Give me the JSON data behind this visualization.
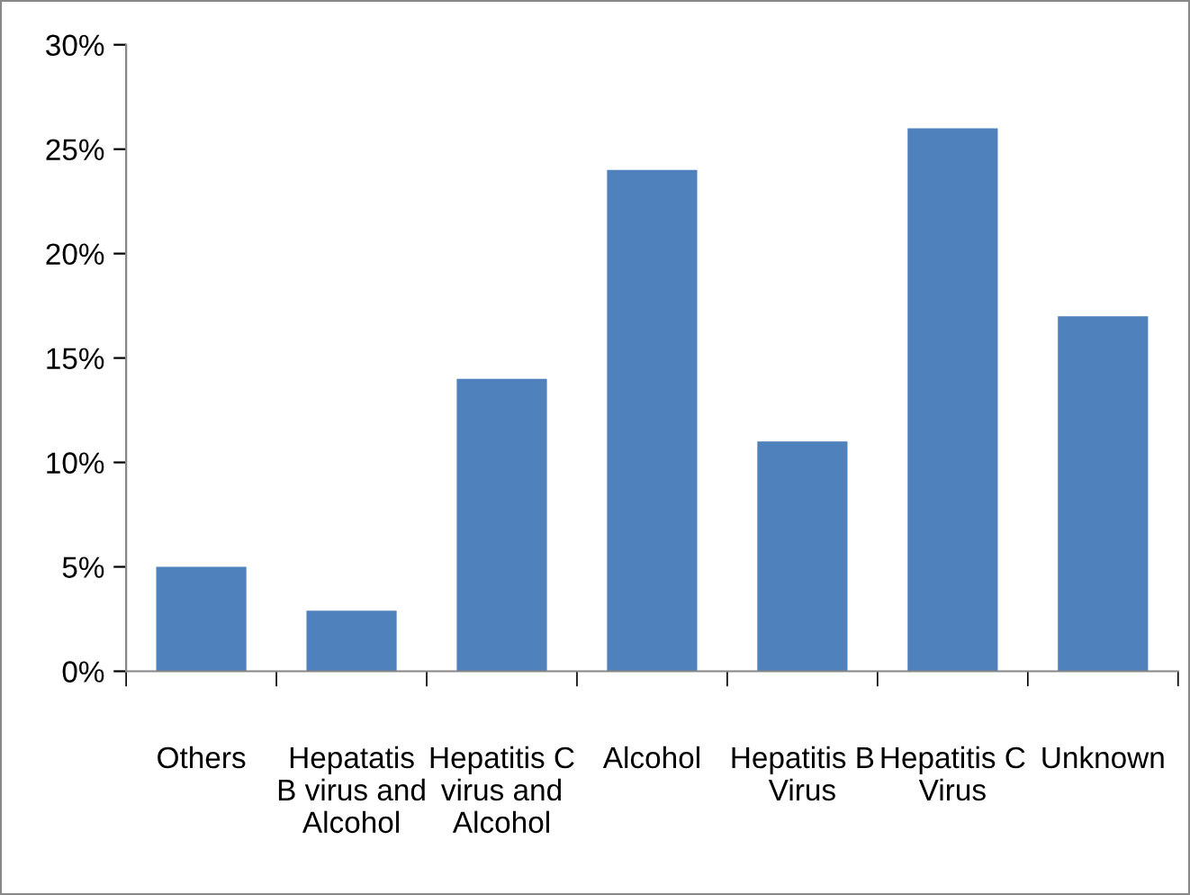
{
  "chart_data": {
    "type": "bar",
    "categories": [
      "Others",
      "Hepatatis\nB virus and\nAlcohol",
      "Hepatitis C\nvirus and\nAlcohol",
      "Alcohol",
      "Hepatitis B\nVirus",
      "Hepatitis C\nVirus",
      "Unknown"
    ],
    "values": [
      5,
      2.9,
      14,
      24,
      11,
      26,
      17
    ],
    "color": "#4f81bd",
    "ylim": [
      0,
      30
    ],
    "yticks": [
      {
        "value": 0,
        "label": "0%"
      },
      {
        "value": 5,
        "label": "5%"
      },
      {
        "value": 10,
        "label": "10%"
      },
      {
        "value": 15,
        "label": "15%"
      },
      {
        "value": 20,
        "label": "20%"
      },
      {
        "value": 25,
        "label": "25%"
      },
      {
        "value": 30,
        "label": "30%"
      }
    ],
    "grid": false
  }
}
